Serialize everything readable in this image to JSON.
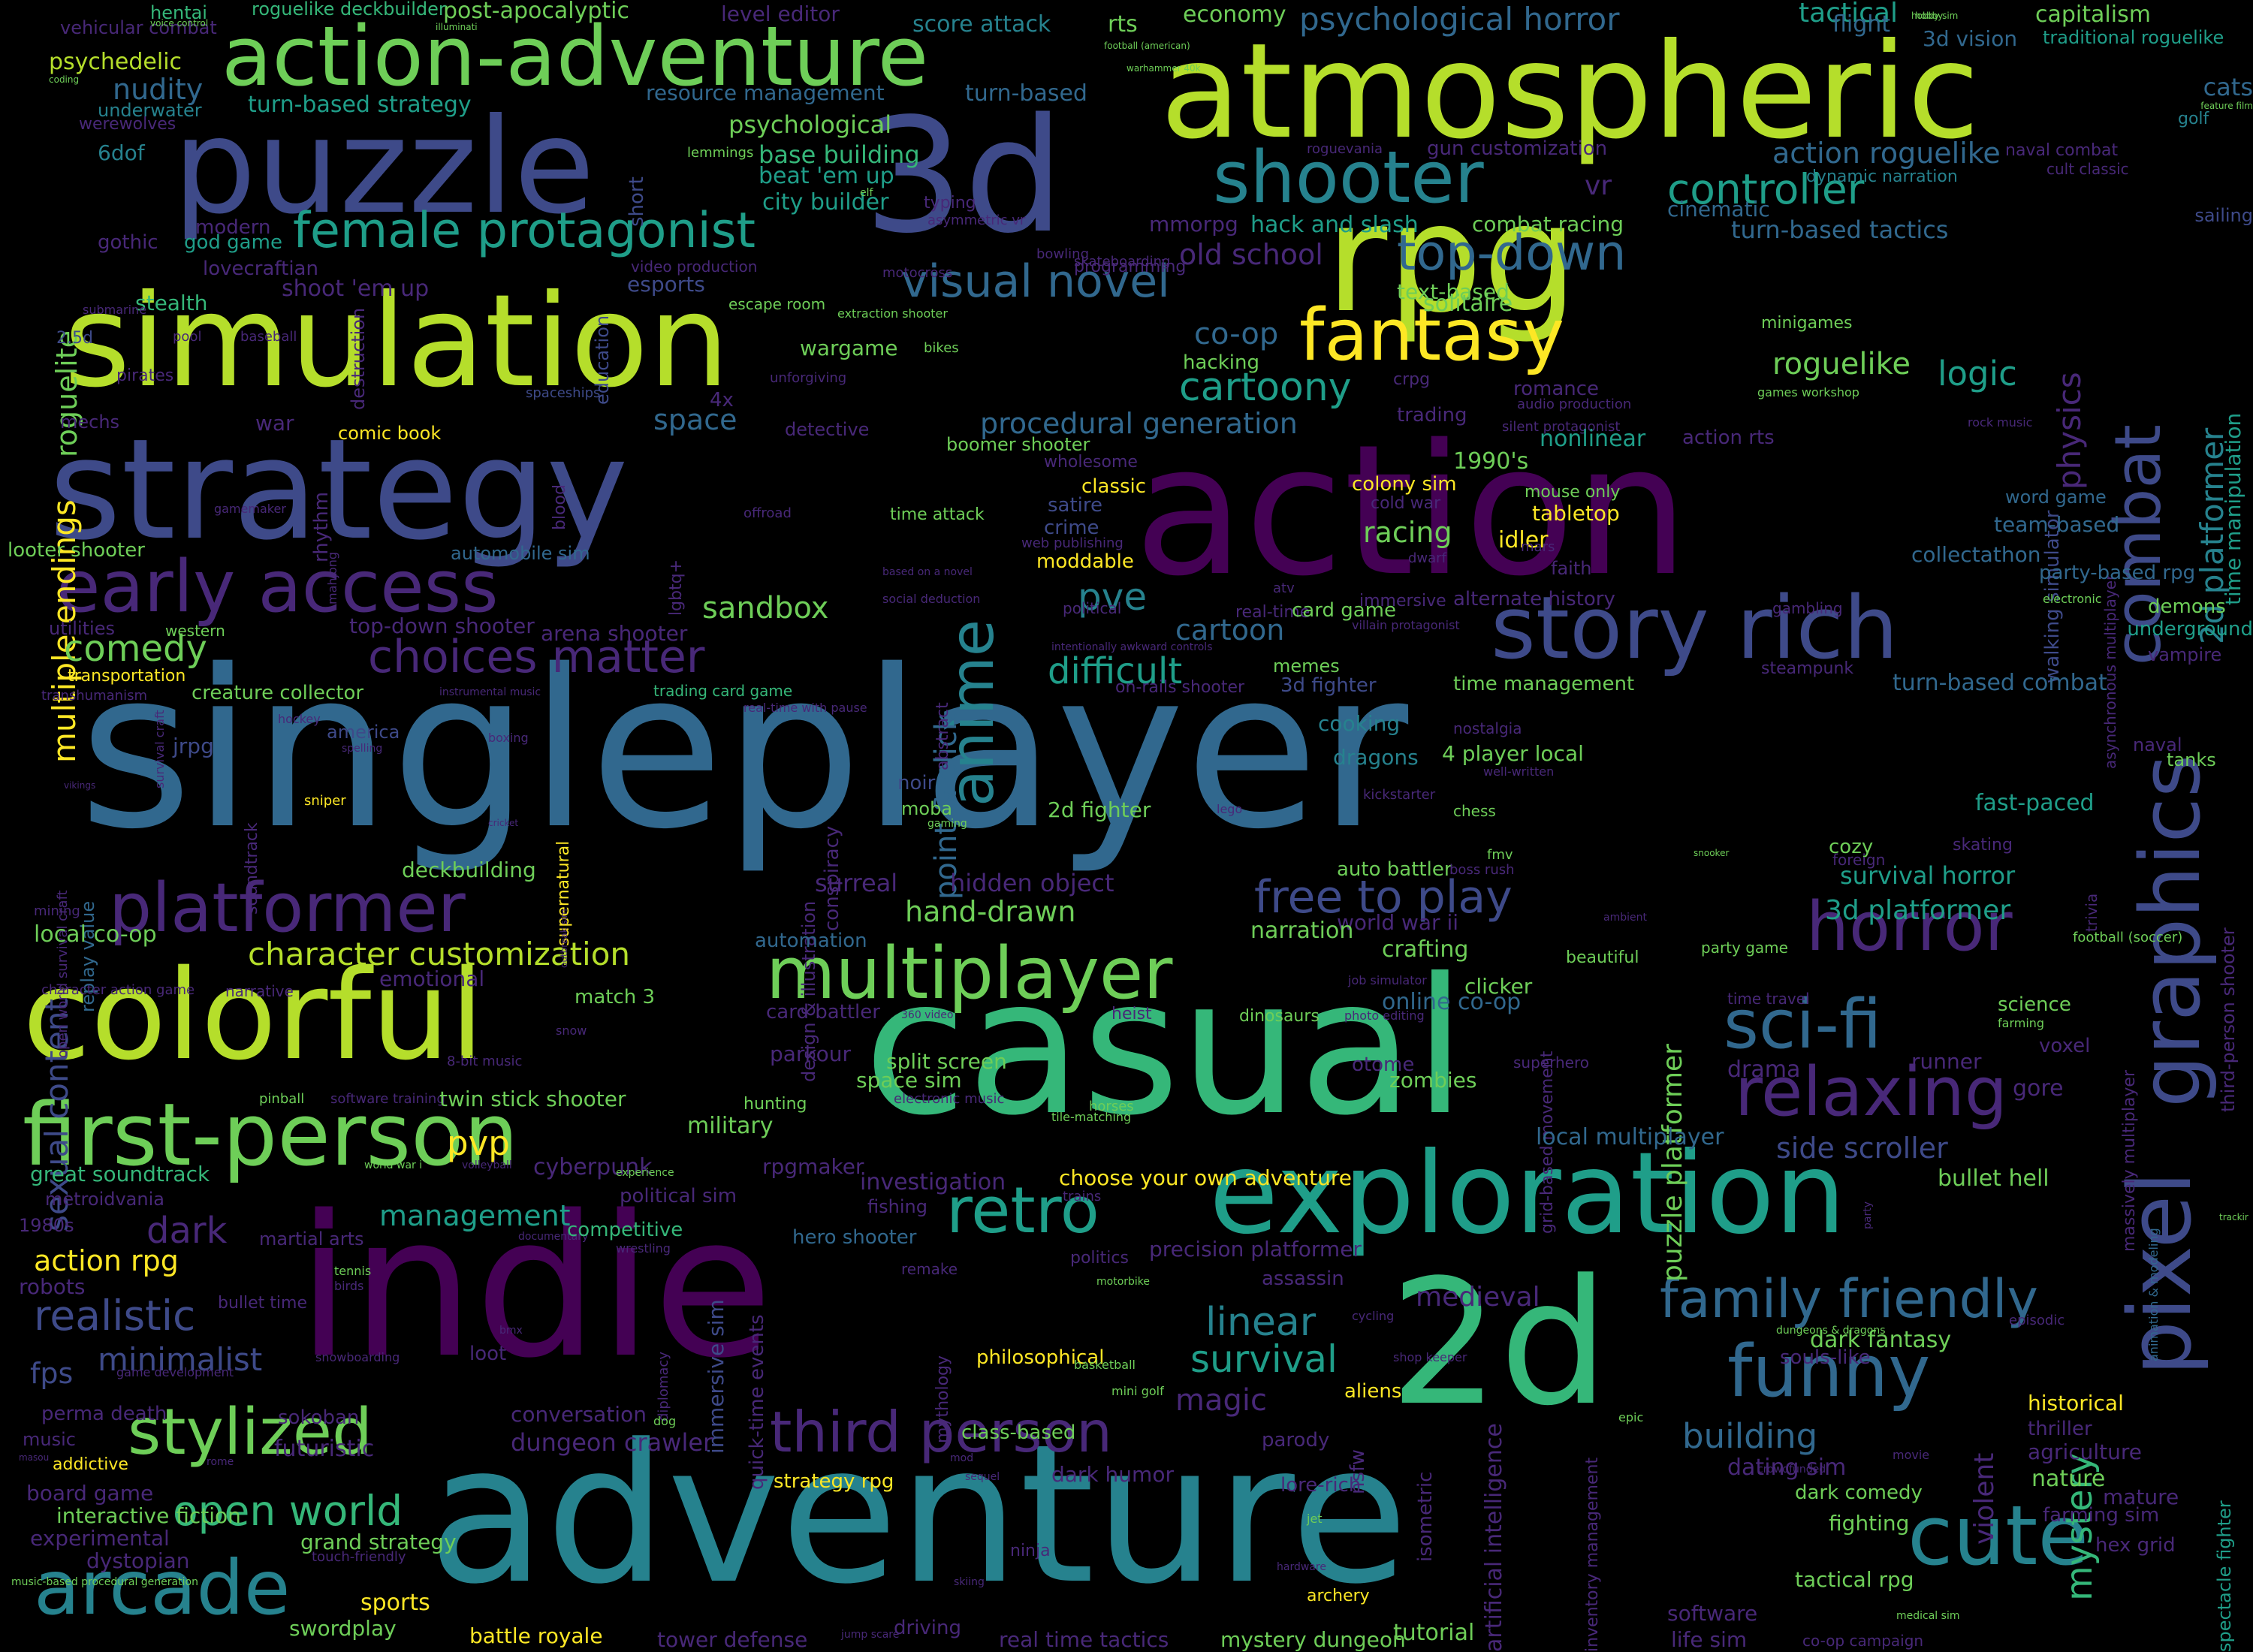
{
  "palette": {
    "background": "#000000",
    "deep_purple": "#440154",
    "purple": "#482878",
    "indigo": "#3e4a89",
    "blue": "#31688e",
    "teal": "#26828e",
    "sea_green": "#1f9e89",
    "green": "#35b779",
    "light_green": "#6ece58",
    "lime": "#b5de2b",
    "yellow": "#fde725"
  },
  "words": [
    "singleplayer",
    "action",
    "indie",
    "adventure",
    "casual",
    "simulation",
    "strategy",
    "atmospheric",
    "puzzle",
    "3d",
    "rpg",
    "2d",
    "colorful",
    "exploration",
    "first-person",
    "action-adventure",
    "story rich",
    "early access",
    "graphics",
    "pixel",
    "multiplayer",
    "platformer",
    "horror",
    "fantasy",
    "shooter",
    "cute",
    "arcade",
    "female protagonist",
    "anime",
    "funny",
    "sci-fi",
    "relaxing",
    "retro",
    "stylized",
    "combat",
    "family friendly",
    "third person",
    "top-down",
    "visual novel",
    "open world",
    "choices matter",
    "cartoony",
    "controller",
    "multiple endings",
    "2d platformer",
    "point & click",
    "sexual content",
    "character customization",
    "realistic",
    "free to play",
    "mystery",
    "survival",
    "physics",
    "comedy",
    "roguelite",
    "linear",
    "difficult",
    "dark",
    "pve",
    "pvp",
    "sandbox",
    "procedural generation",
    "puzzle platformer",
    "building",
    "side scroller",
    "roguelike",
    "logic",
    "management",
    "co-op",
    "space",
    "cartoon",
    "action rpg",
    "fps",
    "minimalist",
    "magic",
    "hand-drawn",
    "turn-based strategy",
    "old school",
    "turn-based tactics",
    "psychological horror",
    "action roguelike",
    "hack and slash",
    "resource management",
    "turn-based",
    "tactical",
    "capitalism",
    "economy",
    "post-apocalyptic",
    "score attack",
    "rts",
    "flight",
    "level editor",
    "roguelike deckbuilder",
    "hentai",
    "vehicular combat",
    "psychedelic",
    "nudity",
    "underwater",
    "werewolves",
    "6dof",
    "psychological",
    "base building",
    "beat 'em up",
    "city builder",
    "typing",
    "asymmetric vr",
    "gun customization",
    "roguevania",
    "dynamic narration",
    "naval combat",
    "cult classic",
    "traditional roguelike",
    "3d vision",
    "hobby sim",
    "cats",
    "feature film",
    "golf",
    "lemmings",
    "short",
    "elf",
    "sailing",
    "cinematic",
    "time manipulation",
    "asynchronous multiplayer",
    "walking simulator",
    "mmorpg",
    "combat racing",
    "vr",
    "modern",
    "god game",
    "gothic",
    "lovecraftian",
    "programming",
    "skateboarding",
    "motocross",
    "bowling",
    "video production",
    "esports",
    "shoot 'em up",
    "stealth",
    "submarine",
    "escape room",
    "extraction shooter",
    "text-based",
    "solitaire",
    "2.5d",
    "pool",
    "baseball",
    "destruction",
    "education",
    "wargame",
    "bikes",
    "hacking",
    "minigames",
    "unforgiving",
    "pirates",
    "mechs",
    "war",
    "4x",
    "spaceships",
    "crpg",
    "trading",
    "audio production",
    "romance",
    "silent protagonist",
    "games workshop",
    "rock music",
    "nonlinear",
    "action rts",
    "1990's",
    "comic book",
    "detective",
    "boomer shooter",
    "wholesome",
    "blood",
    "rhythm",
    "offroad",
    "satire",
    "crime",
    "classic",
    "colony sim",
    "cold war",
    "mouse only",
    "tabletop",
    "word game",
    "team-based",
    "looter shooter",
    "gamemaker",
    "mahjong",
    "lgbtq+",
    "automobile sim",
    "web publishing",
    "time attack",
    "moddable",
    "racing",
    "idler",
    "mars",
    "dwarf",
    "faith",
    "based on a novel",
    "collectathon",
    "party-based rpg",
    "electronic",
    "alternate history",
    "immersive",
    "real-time",
    "atv",
    "card game",
    "gambling",
    "demons",
    "underground",
    "utilities",
    "western",
    "top-down shooter",
    "arena shooter",
    "social deduction",
    "political",
    "intentionally awkward controls",
    "villain protagonist",
    "vampire",
    "transportation",
    "transhumanism",
    "creature collector",
    "instrumental music",
    "trading card game",
    "real-time with pause",
    "abstract",
    "memes",
    "3d fighter",
    "time management",
    "steampunk",
    "turn-based combat",
    "on-rails shooter",
    "hockey",
    "america",
    "survival craft",
    "soundtrack",
    "jrpg",
    "boxing",
    "spelling",
    "vikings",
    "supernatural",
    "nostalgia",
    "cooking",
    "dragons",
    "4 player local",
    "well-written",
    "naval",
    "tanks",
    "third-person shooter",
    "fast-paced",
    "sniper",
    "cozy",
    "2d fighter",
    "moba",
    "gaming",
    "noir",
    "conspiracy",
    "lego",
    "chess",
    "kickstarter",
    "foreign",
    "trivia",
    "skating",
    "cricket",
    "open world survival craft",
    "replay value",
    "deckbuilding",
    "outbreak sim",
    "design & illustration",
    "surreal",
    "hidden object",
    "auto battler",
    "fmv",
    "boss rush",
    "snooker",
    "survival horror",
    "mining",
    "world war ii",
    "narration",
    "ambient",
    "3d platformer",
    "football (soccer)",
    "local co-op",
    "automation",
    "crafting",
    "clicker",
    "job simulator",
    "beautiful",
    "party game",
    "character action game",
    "narrative",
    "emotional",
    "match 3",
    "card battler",
    "360 video",
    "online co-op",
    "dinosaurs",
    "photo editing",
    "heist",
    "grid-based movement",
    "superhero",
    "time travel",
    "science",
    "farming",
    "voxel",
    "snow",
    "8-bit music",
    "parkour",
    "split screen",
    "space sim",
    "electronic music",
    "otome",
    "zombies",
    "drama",
    "runner",
    "gore",
    "pinball",
    "software training",
    "twin stick shooter",
    "hunting",
    "military",
    "rpgmaker",
    "horses",
    "tile-matching",
    "massively multiplayer",
    "animation & modeling",
    "great soundtrack",
    "metroidvania",
    "world war i",
    "volleyball",
    "cyberpunk",
    "political sim",
    "investigation",
    "fishing",
    "choose your own adventure",
    "trains",
    "local multiplayer",
    "bullet hell",
    "party",
    "trackir",
    "1980s",
    "martial arts",
    "experience",
    "documentary",
    "competitive",
    "wrestling",
    "hero shooter",
    "immersive sim",
    "quick-time events",
    "remake",
    "politics",
    "precision platformer",
    "assassin",
    "medieval",
    "dark fantasy",
    "episodic",
    "robots",
    "bullet time",
    "tennis",
    "birds",
    "diplomacy",
    "mythology",
    "motorbike",
    "cycling",
    "dungeons & dragons",
    "souls-like",
    "perma death",
    "game development",
    "snowboarding",
    "loot",
    "bmx",
    "philosophical",
    "basketball",
    "aliens",
    "shop keeper",
    "historical",
    "thriller",
    "music",
    "sokoban",
    "conversation",
    "dog",
    "dungeon crawler",
    "mini golf",
    "epic",
    "agriculture",
    "addictive",
    "mod",
    "nsfw",
    "isometric",
    "dating sim",
    "nature",
    "mature",
    "board game",
    "futuristic",
    "rome",
    "class-based",
    "parody",
    "artificial intelligence",
    "dark comedy",
    "spectacle fighter",
    "interactive fiction",
    "strategy rpg",
    "sequel",
    "dark humor",
    "lore-rich",
    "inventory management",
    "crowdfunded",
    "movie",
    "fighting",
    "experimental",
    "farming sim",
    "dystopian",
    "grand strategy",
    "touch-friendly",
    "jet",
    "violent",
    "hex grid",
    "music-based procedural generation",
    "sports",
    "ninja",
    "hardware",
    "tactical rpg",
    "swordplay",
    "battle royale",
    "tower defense",
    "jump scare",
    "driving",
    "real time tactics",
    "mystery dungeon",
    "archery",
    "tutorial",
    "software",
    "life sim",
    "co-op campaign",
    "medical sim",
    "voice control",
    "illuminati",
    "football (american)",
    "warhammer 40k",
    "coding",
    "skiing",
    "masou",
    "hobby"
  ]
}
